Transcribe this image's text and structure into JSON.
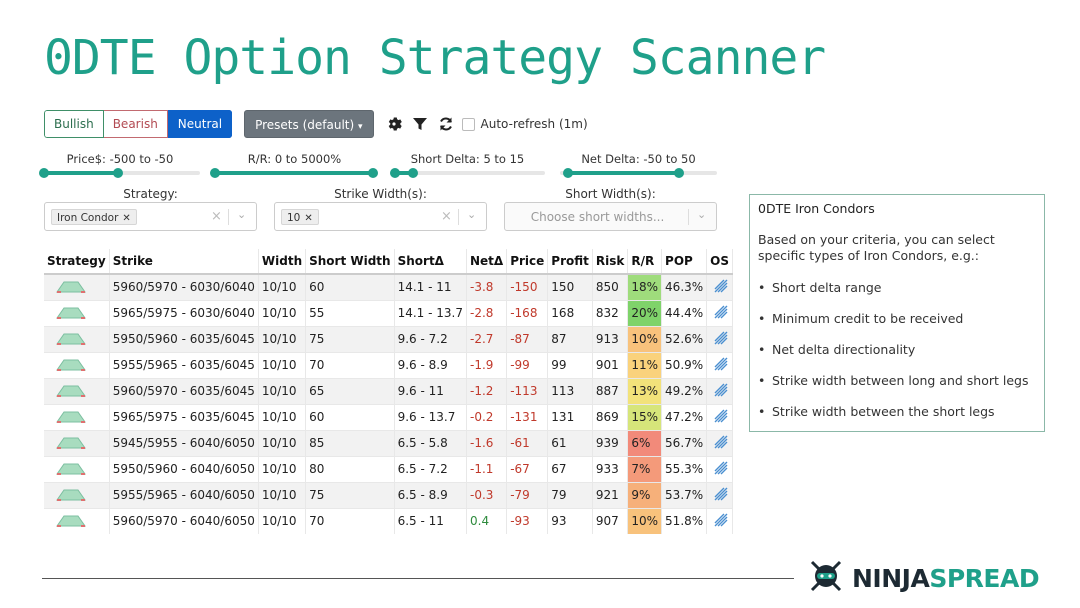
{
  "title": "0DTE Option Strategy Scanner",
  "toolbar": {
    "bullish": "Bullish",
    "bearish": "Bearish",
    "neutral": "Neutral",
    "presets": "Presets (default)",
    "auto_refresh": "Auto-refresh (1m)",
    "auto_refresh_checked": false
  },
  "sliders": [
    {
      "label": "Price$: -500 to -50",
      "range": [
        -500,
        -50
      ]
    },
    {
      "label": "R/R: 0 to 5000%",
      "range": [
        0,
        5000
      ]
    },
    {
      "label": "Short Delta: 5 to 15",
      "range": [
        5,
        15
      ]
    },
    {
      "label": "Net Delta: -50 to 50",
      "range": [
        -50,
        50
      ]
    }
  ],
  "filters": {
    "strategy_label": "Strategy:",
    "strategy_value": "Iron Condor",
    "strike_width_label": "Strike Width(s):",
    "strike_width_value": "10",
    "short_width_label": "Short Width(s):",
    "short_width_placeholder": "Choose short widths..."
  },
  "table": {
    "columns": [
      "Strategy",
      "Strike",
      "Width",
      "Short Width",
      "ShortΔ",
      "NetΔ",
      "Price",
      "Profit",
      "Risk",
      "R/R",
      "POP",
      "OS"
    ],
    "rows": [
      {
        "strike": "5960/5970 - 6030/6040",
        "width": "10/10",
        "short_width": "60",
        "short_delta": "14.1 - 11",
        "net_delta": "-3.8",
        "price": "-150",
        "profit": "150",
        "risk": "850",
        "rr": "18%",
        "pop": "46.3%",
        "rr_color": "#9fdc7c"
      },
      {
        "strike": "5965/5975 - 6030/6040",
        "width": "10/10",
        "short_width": "55",
        "short_delta": "14.1 - 13.7",
        "net_delta": "-2.8",
        "price": "-168",
        "profit": "168",
        "risk": "832",
        "rr": "20%",
        "pop": "44.4%",
        "rr_color": "#7fd36a"
      },
      {
        "strike": "5950/5960 - 6035/6045",
        "width": "10/10",
        "short_width": "75",
        "short_delta": "9.6 - 7.2",
        "net_delta": "-2.7",
        "price": "-87",
        "profit": "87",
        "risk": "913",
        "rr": "10%",
        "pop": "52.6%",
        "rr_color": "#f8c27c"
      },
      {
        "strike": "5955/5965 - 6035/6045",
        "width": "10/10",
        "short_width": "70",
        "short_delta": "9.6 - 8.9",
        "net_delta": "-1.9",
        "price": "-99",
        "profit": "99",
        "risk": "901",
        "rr": "11%",
        "pop": "50.9%",
        "rr_color": "#fad27c"
      },
      {
        "strike": "5960/5970 - 6035/6045",
        "width": "10/10",
        "short_width": "65",
        "short_delta": "9.6 - 11",
        "net_delta": "-1.2",
        "price": "-113",
        "profit": "113",
        "risk": "887",
        "rr": "13%",
        "pop": "49.2%",
        "rr_color": "#f2e27a"
      },
      {
        "strike": "5965/5975 - 6035/6045",
        "width": "10/10",
        "short_width": "60",
        "short_delta": "9.6 - 13.7",
        "net_delta": "-0.2",
        "price": "-131",
        "profit": "131",
        "risk": "869",
        "rr": "15%",
        "pop": "47.2%",
        "rr_color": "#d6e57a"
      },
      {
        "strike": "5945/5955 - 6040/6050",
        "width": "10/10",
        "short_width": "85",
        "short_delta": "6.5 - 5.8",
        "net_delta": "-1.6",
        "price": "-61",
        "profit": "61",
        "risk": "939",
        "rr": "6%",
        "pop": "56.7%",
        "rr_color": "#f28a7a"
      },
      {
        "strike": "5950/5960 - 6040/6050",
        "width": "10/10",
        "short_width": "80",
        "short_delta": "6.5 - 7.2",
        "net_delta": "-1.1",
        "price": "-67",
        "profit": "67",
        "risk": "933",
        "rr": "7%",
        "pop": "55.3%",
        "rr_color": "#f49a7a"
      },
      {
        "strike": "5955/5965 - 6040/6050",
        "width": "10/10",
        "short_width": "75",
        "short_delta": "6.5 - 8.9",
        "net_delta": "-0.3",
        "price": "-79",
        "profit": "79",
        "risk": "921",
        "rr": "9%",
        "pop": "53.7%",
        "rr_color": "#f6b07a"
      },
      {
        "strike": "5960/5970 - 6040/6050",
        "width": "10/10",
        "short_width": "70",
        "short_delta": "6.5 - 11",
        "net_delta": "0.4",
        "price": "-93",
        "profit": "93",
        "risk": "907",
        "rr": "10%",
        "pop": "51.8%",
        "rr_color": "#f8c27c"
      }
    ]
  },
  "side_panel": {
    "title": "0DTE Iron Condors",
    "text": "Based on your criteria, you can select specific types of Iron Condors, e.g.:",
    "bullets": [
      "Short delta range",
      "Minimum credit to be received",
      "Net delta directionality",
      "Strike width between long and short legs",
      "Strike width between the short legs"
    ]
  },
  "logo": {
    "part1": "NINJA",
    "part2": "SPREAD"
  },
  "colors": {
    "accent": "#1fa08a",
    "primary": "#0d61c9",
    "logo_dark": "#1d2a33",
    "logo_green": "#1fa08a"
  }
}
